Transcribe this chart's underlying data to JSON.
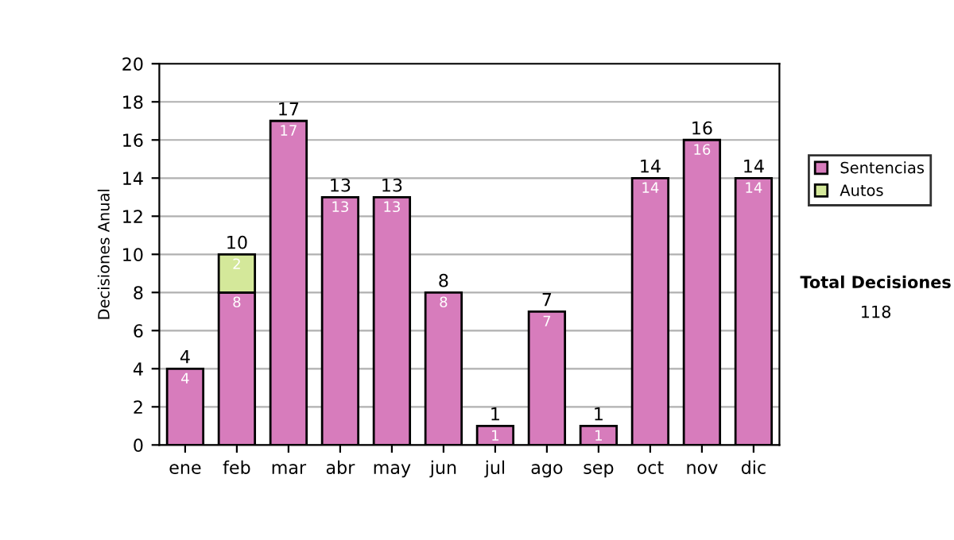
{
  "chart_data": {
    "type": "bar",
    "ylabel": "Decisiones Anual",
    "categories": [
      "ene",
      "feb",
      "mar",
      "abr",
      "may",
      "jun",
      "jul",
      "ago",
      "sep",
      "oct",
      "nov",
      "dic"
    ],
    "series": [
      {
        "name": "Sentencias",
        "color": "#d77cbc",
        "values": [
          4,
          8,
          17,
          13,
          13,
          8,
          1,
          7,
          1,
          14,
          16,
          14
        ]
      },
      {
        "name": "Autos",
        "color": "#d4e89a",
        "values": [
          null,
          2,
          null,
          null,
          null,
          null,
          null,
          null,
          null,
          null,
          null,
          null
        ]
      }
    ],
    "stacked": true,
    "data_labels": true,
    "totals": [
      "4",
      "10",
      "17",
      "13",
      "13",
      "8",
      "1",
      "7",
      "1",
      "14",
      "16",
      "14"
    ],
    "ylim": [
      0,
      20
    ],
    "yticks": [
      0,
      2,
      4,
      6,
      8,
      10,
      12,
      14,
      16,
      18,
      20
    ],
    "grid": "y",
    "legend": "right",
    "annotations": [
      "Total Decisiones",
      "118"
    ]
  }
}
